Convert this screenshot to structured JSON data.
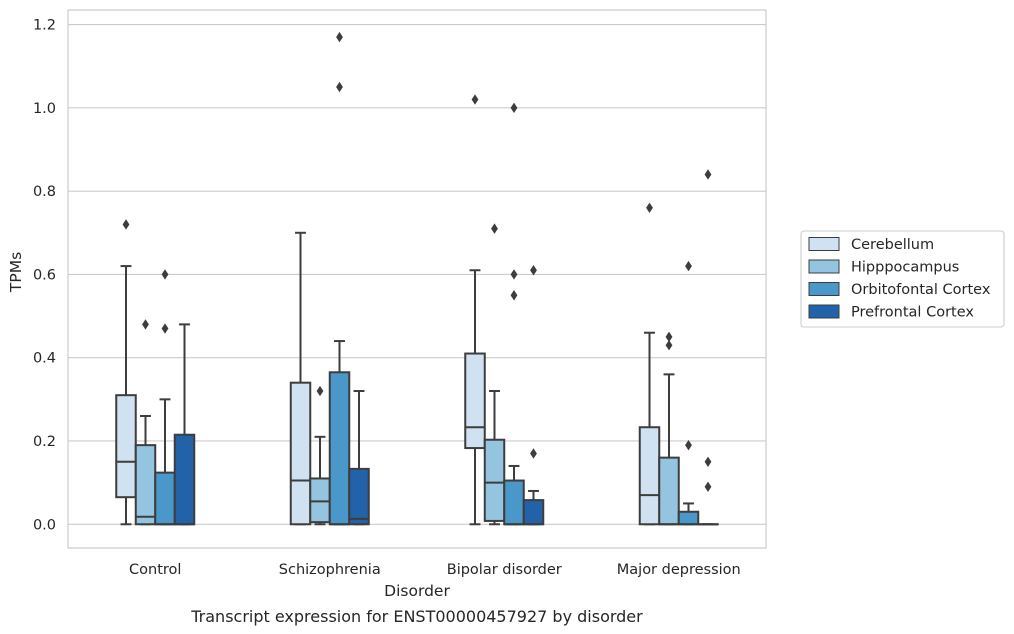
{
  "chart_data": {
    "type": "boxplot",
    "caption": "Transcript expression for ENST00000457927 by disorder",
    "xlabel": "Disorder",
    "ylabel": "TPMs",
    "ylim": [
      -0.057,
      1.235
    ],
    "yticks": [
      "0.0",
      "0.2",
      "0.4",
      "0.6",
      "0.8",
      "1.0",
      "1.2"
    ],
    "ytick_values": [
      0.0,
      0.2,
      0.4,
      0.6,
      0.8,
      1.0,
      1.2
    ],
    "grid": "horizontal",
    "legend_position": "right",
    "categories": [
      "Control",
      "Schizophrenia",
      "Bipolar disorder",
      "Major depression"
    ],
    "series": [
      {
        "name": "Cerebellum",
        "color": "#d0e1f2",
        "boxes": [
          {
            "whislo": 0.0,
            "q1": 0.065,
            "med": 0.15,
            "q3": 0.31,
            "whishi": 0.62,
            "fliers": [
              0.72
            ]
          },
          {
            "whislo": 0.0,
            "q1": 0.0,
            "med": 0.105,
            "q3": 0.34,
            "whishi": 0.7,
            "fliers": []
          },
          {
            "whislo": 0.0,
            "q1": 0.183,
            "med": 0.233,
            "q3": 0.41,
            "whishi": 0.61,
            "fliers": [
              1.02
            ]
          },
          {
            "whislo": 0.0,
            "q1": 0.0,
            "med": 0.07,
            "q3": 0.233,
            "whishi": 0.46,
            "fliers": [
              0.76
            ]
          }
        ]
      },
      {
        "name": "Hipppocampus",
        "color": "#94c4df",
        "boxes": [
          {
            "whislo": 0.0,
            "q1": 0.0,
            "med": 0.018,
            "q3": 0.19,
            "whishi": 0.26,
            "fliers": [
              0.48
            ]
          },
          {
            "whislo": 0.0,
            "q1": 0.005,
            "med": 0.055,
            "q3": 0.11,
            "whishi": 0.21,
            "fliers": [
              0.32
            ]
          },
          {
            "whislo": 0.0,
            "q1": 0.008,
            "med": 0.1,
            "q3": 0.203,
            "whishi": 0.32,
            "fliers": [
              0.71
            ]
          },
          {
            "whislo": 0.0,
            "q1": 0.0,
            "med": 0.0,
            "q3": 0.16,
            "whishi": 0.36,
            "fliers": [
              0.43,
              0.45
            ]
          }
        ]
      },
      {
        "name": "Orbitofontal Cortex",
        "color": "#4a98c9",
        "boxes": [
          {
            "whislo": 0.0,
            "q1": 0.0,
            "med": 0.0,
            "q3": 0.124,
            "whishi": 0.3,
            "fliers": [
              0.47,
              0.6
            ]
          },
          {
            "whislo": 0.0,
            "q1": 0.0,
            "med": 0.0,
            "q3": 0.365,
            "whishi": 0.44,
            "fliers": [
              1.05,
              1.17
            ]
          },
          {
            "whislo": 0.0,
            "q1": 0.0,
            "med": 0.0,
            "q3": 0.105,
            "whishi": 0.14,
            "fliers": [
              0.55,
              0.6,
              1.0
            ]
          },
          {
            "whislo": 0.0,
            "q1": 0.0,
            "med": 0.0,
            "q3": 0.03,
            "whishi": 0.05,
            "fliers": [
              0.19,
              0.62
            ]
          }
        ]
      },
      {
        "name": "Prefrontal Cortex",
        "color": "#2262a9",
        "boxes": [
          {
            "whislo": 0.0,
            "q1": 0.0,
            "med": 0.0,
            "q3": 0.215,
            "whishi": 0.48,
            "fliers": []
          },
          {
            "whislo": 0.0,
            "q1": 0.0,
            "med": 0.013,
            "q3": 0.133,
            "whishi": 0.32,
            "fliers": []
          },
          {
            "whislo": 0.0,
            "q1": 0.0,
            "med": 0.0,
            "q3": 0.058,
            "whishi": 0.08,
            "fliers": [
              0.17,
              0.61
            ]
          },
          {
            "whislo": 0.0,
            "q1": 0.0,
            "med": 0.0,
            "q3": 0.0,
            "whishi": 0.0,
            "fliers": [
              0.09,
              0.15,
              0.84
            ]
          }
        ]
      }
    ]
  }
}
